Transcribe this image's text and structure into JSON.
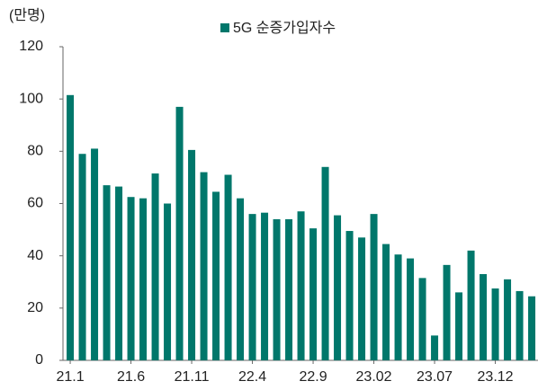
{
  "chart_data": {
    "type": "bar",
    "y_label": "(만명)",
    "series": [
      {
        "name": "5G 순증가입자수",
        "color": "#00776b",
        "values": [
          101.5,
          79,
          81,
          67,
          66.5,
          62.5,
          62,
          71.5,
          60,
          97,
          80.5,
          72,
          64.5,
          71,
          62,
          56,
          56.5,
          54,
          54,
          57,
          50.5,
          74,
          55.5,
          49.5,
          47,
          56,
          44.5,
          40.5,
          39,
          31.5,
          9.5,
          36.5,
          26,
          42,
          33,
          27.5,
          31,
          26.5,
          24.5
        ]
      }
    ],
    "categories": [
      "21.1",
      null,
      null,
      null,
      null,
      "21.6",
      null,
      null,
      null,
      null,
      "21.11",
      null,
      null,
      null,
      null,
      "22.4",
      null,
      null,
      null,
      null,
      "22.9",
      null,
      null,
      null,
      null,
      "23.02",
      null,
      null,
      null,
      null,
      "23.07",
      null,
      null,
      null,
      null,
      "23.12",
      null,
      null,
      null
    ],
    "ylim": [
      0,
      120
    ],
    "yticks": [
      0,
      20,
      40,
      60,
      80,
      100,
      120
    ]
  }
}
